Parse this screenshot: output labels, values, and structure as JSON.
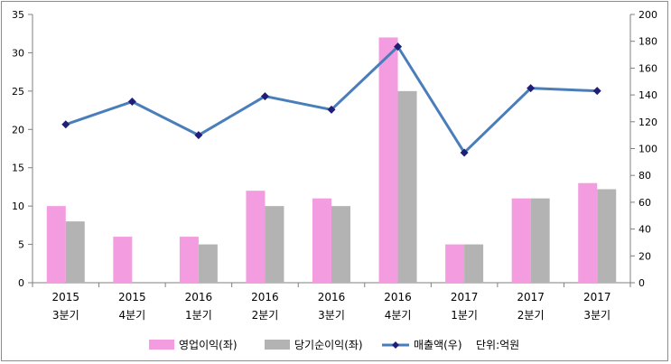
{
  "chart_data": {
    "type": "bar",
    "categories": [
      {
        "year": "2015",
        "quarter": "3분기"
      },
      {
        "year": "2015",
        "quarter": "4분기"
      },
      {
        "year": "2016",
        "quarter": "1분기"
      },
      {
        "year": "2016",
        "quarter": "2분기"
      },
      {
        "year": "2016",
        "quarter": "3분기"
      },
      {
        "year": "2016",
        "quarter": "4분기"
      },
      {
        "year": "2017",
        "quarter": "1분기"
      },
      {
        "year": "2017",
        "quarter": "2분기"
      },
      {
        "year": "2017",
        "quarter": "3분기"
      }
    ],
    "series": [
      {
        "name": "영업이익(좌)",
        "type": "bar",
        "axis": "left",
        "color": "#f49ce0",
        "values": [
          10,
          6,
          6,
          12,
          11,
          32,
          5,
          11,
          13
        ]
      },
      {
        "name": "당기순이익(좌)",
        "type": "bar",
        "axis": "left",
        "color": "#b3b3b3",
        "values": [
          8,
          null,
          5,
          10,
          10,
          25,
          5,
          11,
          12.2
        ]
      },
      {
        "name": "매출액(우)",
        "type": "line",
        "axis": "right",
        "color": "#4a7ebb",
        "marker_color": "#1f1f7a",
        "values": [
          118,
          135,
          110,
          139,
          129,
          176,
          97,
          145,
          143
        ]
      }
    ],
    "left_axis": {
      "min": 0,
      "max": 35,
      "step": 5
    },
    "right_axis": {
      "min": 0,
      "max": 200,
      "step": 20
    },
    "unit_note": "단위:억원",
    "legend_position": "bottom",
    "grid": false
  }
}
